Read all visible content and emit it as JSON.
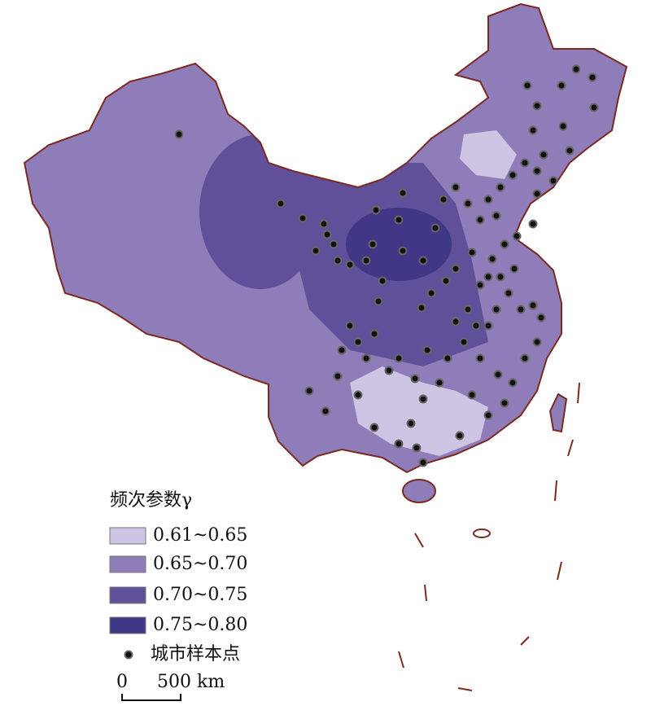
{
  "legend": {
    "title": "频次参数γ",
    "items": [
      {
        "label": "0.61~0.65",
        "color": "#cdc5e3"
      },
      {
        "label": "0.65~0.70",
        "color": "#8f7db9"
      },
      {
        "label": "0.70~0.75",
        "color": "#5f5099"
      },
      {
        "label": "0.75~0.80",
        "color": "#403886"
      }
    ],
    "points_label": "城市样本点"
  },
  "scale_bar": {
    "labels": [
      "0",
      "500 km"
    ]
  }
}
